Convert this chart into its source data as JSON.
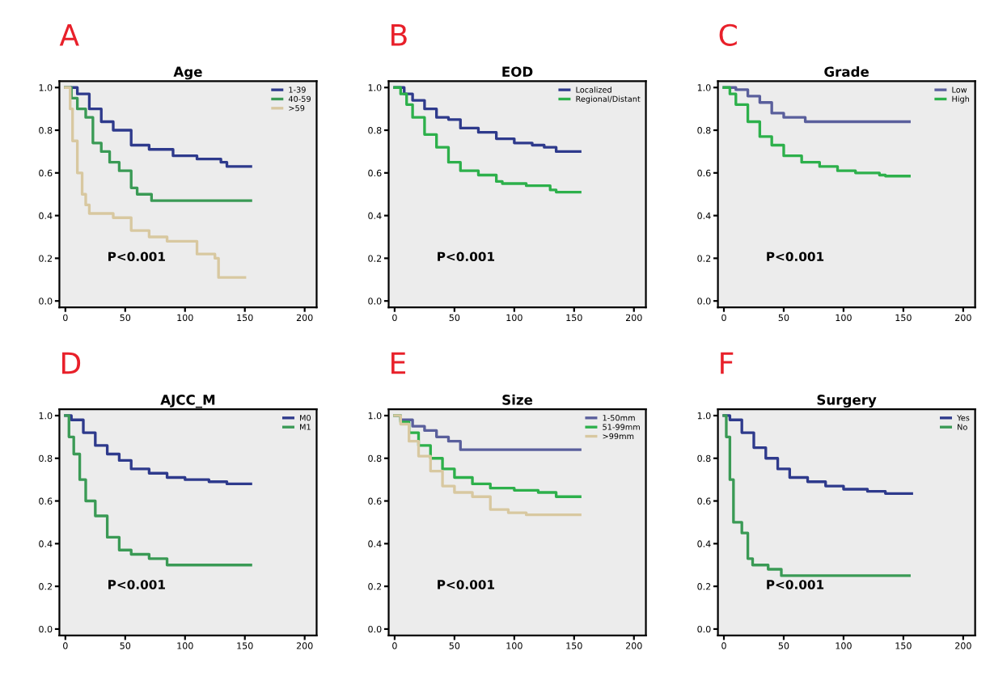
{
  "chart_data": [
    {
      "type": "step",
      "title": "Age",
      "annotations": [
        "A",
        "P<0.001"
      ],
      "legend": "top right",
      "xlim": [
        -5,
        210
      ],
      "ylim": [
        -0.03,
        1.03
      ],
      "xticks": [
        0,
        50,
        100,
        150,
        200
      ],
      "yticks": [
        {
          "value": 0,
          "label": "0.0"
        },
        {
          "value": 0.2,
          "label": "0.2"
        },
        {
          "value": 0.4,
          "label": "0.4"
        },
        {
          "value": 0.6,
          "label": "0.6"
        },
        {
          "value": 0.8,
          "label": "0.8"
        },
        {
          "value": 1,
          "label": "1.0"
        }
      ],
      "series": [
        {
          "name": "1-39",
          "color": "#2e3a8c",
          "x": [
            0,
            10,
            20,
            30,
            40,
            55,
            70,
            90,
            110,
            130,
            135,
            155
          ],
          "values": [
            1,
            0.97,
            0.9,
            0.84,
            0.8,
            0.73,
            0.71,
            0.68,
            0.665,
            0.65,
            0.63,
            0.63
          ]
        },
        {
          "name": "40-59",
          "color": "#3a9a55",
          "x": [
            0,
            5,
            10,
            17,
            23,
            30,
            37,
            45,
            55,
            60,
            72,
            155
          ],
          "values": [
            1,
            0.95,
            0.9,
            0.86,
            0.74,
            0.7,
            0.65,
            0.61,
            0.53,
            0.5,
            0.47,
            0.47
          ]
        },
        {
          "name": ">59",
          "color": "#d8c8a0",
          "x": [
            0,
            4,
            6,
            10,
            14,
            17,
            20,
            40,
            55,
            70,
            85,
            110,
            125,
            128,
            150
          ],
          "values": [
            1,
            0.9,
            0.75,
            0.6,
            0.5,
            0.45,
            0.41,
            0.39,
            0.33,
            0.3,
            0.28,
            0.22,
            0.2,
            0.11,
            0.11
          ]
        }
      ]
    },
    {
      "type": "step",
      "title": "EOD",
      "annotations": [
        "B",
        "P<0.001"
      ],
      "legend": "top right",
      "xlim": [
        -5,
        210
      ],
      "ylim": [
        -0.03,
        1.03
      ],
      "xticks": [
        0,
        50,
        100,
        150,
        200
      ],
      "yticks": [
        {
          "value": 0,
          "label": "0.0"
        },
        {
          "value": 0.2,
          "label": "0.2"
        },
        {
          "value": 0.4,
          "label": "0.4"
        },
        {
          "value": 0.6,
          "label": "0.6"
        },
        {
          "value": 0.8,
          "label": "0.8"
        },
        {
          "value": 1,
          "label": "1.0"
        }
      ],
      "series": [
        {
          "name": "Localized",
          "color": "#2e3a8c",
          "x": [
            0,
            8,
            15,
            25,
            35,
            45,
            55,
            70,
            85,
            100,
            115,
            125,
            135,
            155
          ],
          "values": [
            1,
            0.97,
            0.94,
            0.9,
            0.86,
            0.85,
            0.81,
            0.79,
            0.76,
            0.74,
            0.73,
            0.72,
            0.7,
            0.7
          ]
        },
        {
          "name": "Regional/Distant",
          "color": "#2db04b",
          "x": [
            0,
            5,
            10,
            15,
            25,
            35,
            45,
            55,
            70,
            85,
            90,
            110,
            130,
            135,
            155
          ],
          "values": [
            1,
            0.97,
            0.92,
            0.86,
            0.78,
            0.72,
            0.65,
            0.61,
            0.59,
            0.56,
            0.55,
            0.54,
            0.52,
            0.51,
            0.51
          ]
        }
      ]
    },
    {
      "type": "step",
      "title": "Grade",
      "annotations": [
        "C",
        "P<0.001"
      ],
      "legend": "top right",
      "xlim": [
        -5,
        210
      ],
      "ylim": [
        -0.03,
        1.03
      ],
      "xticks": [
        0,
        50,
        100,
        150,
        200
      ],
      "yticks": [
        {
          "value": 0,
          "label": "0.0"
        },
        {
          "value": 0.2,
          "label": "0.2"
        },
        {
          "value": 0.4,
          "label": "0.4"
        },
        {
          "value": 0.6,
          "label": "0.6"
        },
        {
          "value": 0.8,
          "label": "0.8"
        },
        {
          "value": 1,
          "label": "1.0"
        }
      ],
      "series": [
        {
          "name": "Low",
          "color": "#5a5f9c",
          "x": [
            0,
            10,
            20,
            30,
            40,
            50,
            68,
            155
          ],
          "values": [
            1,
            0.99,
            0.96,
            0.93,
            0.88,
            0.86,
            0.84,
            0.84
          ]
        },
        {
          "name": "High",
          "color": "#2db04b",
          "x": [
            0,
            5,
            10,
            20,
            30,
            40,
            50,
            65,
            80,
            95,
            110,
            130,
            135,
            155
          ],
          "values": [
            1,
            0.97,
            0.92,
            0.84,
            0.77,
            0.73,
            0.68,
            0.65,
            0.63,
            0.61,
            0.6,
            0.59,
            0.585,
            0.585
          ]
        }
      ]
    },
    {
      "type": "step",
      "title": "AJCC_M",
      "annotations": [
        "D",
        "P<0.001"
      ],
      "legend": "top right",
      "xlim": [
        -5,
        210
      ],
      "ylim": [
        -0.03,
        1.03
      ],
      "xticks": [
        0,
        50,
        100,
        150,
        200
      ],
      "yticks": [
        {
          "value": 0,
          "label": "0.0"
        },
        {
          "value": 0.2,
          "label": "0.2"
        },
        {
          "value": 0.4,
          "label": "0.4"
        },
        {
          "value": 0.6,
          "label": "0.6"
        },
        {
          "value": 0.8,
          "label": "0.8"
        },
        {
          "value": 1,
          "label": "1.0"
        }
      ],
      "series": [
        {
          "name": "M0",
          "color": "#2e3a8c",
          "x": [
            0,
            5,
            15,
            25,
            35,
            45,
            55,
            70,
            85,
            100,
            120,
            135,
            155
          ],
          "values": [
            1,
            0.98,
            0.92,
            0.86,
            0.82,
            0.79,
            0.75,
            0.73,
            0.71,
            0.7,
            0.69,
            0.68,
            0.68
          ]
        },
        {
          "name": "M1",
          "color": "#3a9a55",
          "x": [
            0,
            3,
            7,
            12,
            17,
            25,
            35,
            45,
            55,
            70,
            85,
            155
          ],
          "values": [
            1,
            0.9,
            0.82,
            0.7,
            0.6,
            0.53,
            0.43,
            0.37,
            0.35,
            0.33,
            0.3,
            0.3
          ]
        }
      ]
    },
    {
      "type": "step",
      "title": "Size",
      "annotations": [
        "E",
        "P<0.001"
      ],
      "legend": "top right",
      "xlim": [
        -5,
        210
      ],
      "ylim": [
        -0.03,
        1.03
      ],
      "xticks": [
        0,
        50,
        100,
        150,
        200
      ],
      "yticks": [
        {
          "value": 0,
          "label": "0.0"
        },
        {
          "value": 0.2,
          "label": "0.2"
        },
        {
          "value": 0.4,
          "label": "0.4"
        },
        {
          "value": 0.6,
          "label": "0.6"
        },
        {
          "value": 0.8,
          "label": "0.8"
        },
        {
          "value": 1,
          "label": "1.0"
        }
      ],
      "series": [
        {
          "name": "1-50mm",
          "color": "#5a5f9c",
          "x": [
            0,
            5,
            15,
            25,
            35,
            45,
            55,
            155
          ],
          "values": [
            1,
            0.98,
            0.95,
            0.93,
            0.9,
            0.88,
            0.84,
            0.84
          ]
        },
        {
          "name": "51-99mm",
          "color": "#2db04b",
          "x": [
            0,
            5,
            12,
            20,
            30,
            40,
            50,
            65,
            80,
            100,
            120,
            135,
            155
          ],
          "values": [
            1,
            0.97,
            0.92,
            0.86,
            0.8,
            0.75,
            0.71,
            0.68,
            0.66,
            0.65,
            0.64,
            0.62,
            0.62
          ]
        },
        {
          "name": ">99mm",
          "color": "#d8c8a0",
          "x": [
            0,
            5,
            12,
            20,
            30,
            40,
            50,
            65,
            80,
            95,
            110,
            155
          ],
          "values": [
            1,
            0.96,
            0.88,
            0.81,
            0.74,
            0.67,
            0.64,
            0.62,
            0.56,
            0.545,
            0.535,
            0.535
          ]
        }
      ]
    },
    {
      "type": "step",
      "title": "Surgery",
      "annotations": [
        "F",
        "P<0.001"
      ],
      "legend": "top right",
      "xlim": [
        -5,
        210
      ],
      "ylim": [
        -0.03,
        1.03
      ],
      "xticks": [
        0,
        50,
        100,
        150,
        200
      ],
      "yticks": [
        {
          "value": 0,
          "label": "0.0"
        },
        {
          "value": 0.2,
          "label": "0.2"
        },
        {
          "value": 0.4,
          "label": "0.4"
        },
        {
          "value": 0.6,
          "label": "0.6"
        },
        {
          "value": 0.8,
          "label": "0.8"
        },
        {
          "value": 1,
          "label": "1.0"
        }
      ],
      "series": [
        {
          "name": "Yes",
          "color": "#2e3a8c",
          "x": [
            0,
            5,
            15,
            25,
            35,
            45,
            55,
            70,
            85,
            100,
            120,
            135,
            157
          ],
          "values": [
            1,
            0.98,
            0.92,
            0.85,
            0.8,
            0.75,
            0.71,
            0.69,
            0.67,
            0.655,
            0.645,
            0.635,
            0.635
          ]
        },
        {
          "name": "No",
          "color": "#3a9a55",
          "x": [
            0,
            2,
            5,
            8,
            15,
            20,
            24,
            37,
            48,
            155
          ],
          "values": [
            1,
            0.9,
            0.7,
            0.5,
            0.45,
            0.33,
            0.3,
            0.28,
            0.25,
            0.25
          ]
        }
      ]
    }
  ]
}
